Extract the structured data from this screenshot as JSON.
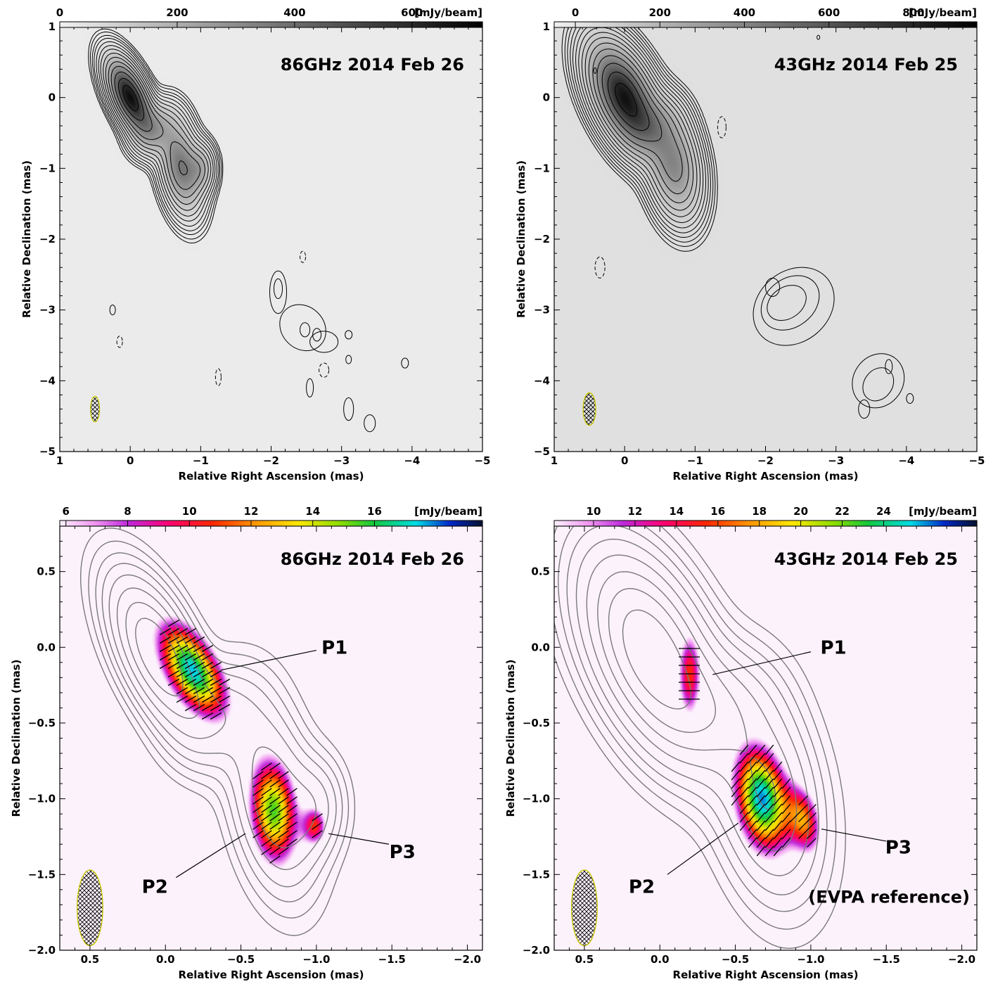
{
  "chart_data": [
    {
      "id": "p86-total",
      "type": "contour",
      "label": "86GHz  2014 Feb 26",
      "xlabel": "Relative Right Ascension (mas)",
      "ylabel": "Relative Declination (mas)",
      "xlim": [
        1,
        -5
      ],
      "ylim": [
        -5,
        1
      ],
      "xticks": [
        1,
        0,
        -1,
        -2,
        -3,
        -4,
        -5
      ],
      "yticks": [
        1,
        0,
        -1,
        -2,
        -3,
        -4,
        -5
      ],
      "colorbar": {
        "unit": "[mJy/beam]",
        "ticks": [
          0,
          200,
          400,
          600
        ],
        "range": [
          0,
          720
        ],
        "map": "gray"
      },
      "image": {
        "peak": 700,
        "background": "#f0f0f0"
      },
      "beam": {
        "x": 0.5,
        "y": -4.4,
        "maj": 0.18,
        "min": 0.065
      },
      "components": [
        {
          "x": 0.0,
          "y": 0.0,
          "flux": 700,
          "rx": 0.14,
          "ry": 0.34,
          "rot": -25
        },
        {
          "x": -0.35,
          "y": -0.45,
          "flux": 180,
          "rx": 0.18,
          "ry": 0.22,
          "rot": 30
        },
        {
          "x": -0.72,
          "y": -0.98,
          "flux": 360,
          "rx": 0.16,
          "ry": 0.38,
          "rot": -10
        },
        {
          "x": -1.0,
          "y": -1.0,
          "flux": 170,
          "rx": 0.12,
          "ry": 0.2,
          "rot": 0
        }
      ],
      "contour_levels": [
        6,
        9,
        14,
        20,
        30,
        45,
        65,
        95,
        135,
        190,
        260,
        360,
        480,
        600
      ],
      "extra_contours": [
        {
          "x": -2.1,
          "y": -2.75,
          "rx": 0.12,
          "ry": 0.3,
          "rot": 0,
          "dashed": false
        },
        {
          "x": -2.45,
          "y": -3.25,
          "rx": 0.3,
          "ry": 0.35,
          "rot": 45,
          "dashed": false
        },
        {
          "x": -2.75,
          "y": -3.45,
          "rx": 0.2,
          "ry": 0.15,
          "rot": 0,
          "dashed": false
        },
        {
          "x": -2.1,
          "y": -2.7,
          "rx": 0.06,
          "ry": 0.14,
          "rot": 0,
          "dashed": false
        },
        {
          "x": -2.48,
          "y": -3.28,
          "rx": 0.07,
          "ry": 0.1,
          "rot": 0,
          "dashed": false
        },
        {
          "x": -2.65,
          "y": -3.35,
          "rx": 0.06,
          "ry": 0.09,
          "rot": 0,
          "dashed": false
        },
        {
          "x": -3.1,
          "y": -3.35,
          "rx": 0.05,
          "ry": 0.06,
          "rot": 0,
          "dashed": false
        },
        {
          "x": -3.1,
          "y": -3.7,
          "rx": 0.04,
          "ry": 0.06,
          "rot": 0,
          "dashed": false
        },
        {
          "x": -3.9,
          "y": -3.75,
          "rx": 0.05,
          "ry": 0.07,
          "rot": 0,
          "dashed": false
        },
        {
          "x": -2.55,
          "y": -4.1,
          "rx": 0.05,
          "ry": 0.13,
          "rot": 0,
          "dashed": false
        },
        {
          "x": -3.1,
          "y": -4.4,
          "rx": 0.07,
          "ry": 0.16,
          "rot": 0,
          "dashed": false
        },
        {
          "x": -3.4,
          "y": -4.6,
          "rx": 0.08,
          "ry": 0.12,
          "rot": 0,
          "dashed": false
        },
        {
          "x": 0.25,
          "y": -3.0,
          "rx": 0.04,
          "ry": 0.07,
          "rot": 0,
          "dashed": false
        },
        {
          "x": -2.75,
          "y": -3.85,
          "rx": 0.07,
          "ry": 0.1,
          "rot": 0,
          "dashed": true
        },
        {
          "x": -2.45,
          "y": -2.25,
          "rx": 0.04,
          "ry": 0.08,
          "rot": 0,
          "dashed": true
        },
        {
          "x": 0.15,
          "y": -3.45,
          "rx": 0.04,
          "ry": 0.08,
          "rot": 0,
          "dashed": true
        },
        {
          "x": -1.25,
          "y": -3.95,
          "rx": 0.04,
          "ry": 0.12,
          "rot": 0,
          "dashed": true
        }
      ],
      "labels": []
    },
    {
      "id": "p43-total",
      "type": "contour",
      "label": "43GHz  2014 Feb 25",
      "xlabel": "Relative Right Ascension (mas)",
      "ylabel": "Relative Declination (mas)",
      "xlim": [
        1,
        -5
      ],
      "ylim": [
        -5,
        1
      ],
      "xticks": [
        1,
        0,
        -1,
        -2,
        -3,
        -4,
        -5
      ],
      "yticks": [
        1,
        0,
        -1,
        -2,
        -3,
        -4,
        -5
      ],
      "colorbar": {
        "unit": "[mJy/beam]",
        "ticks": [
          0,
          200,
          400,
          600,
          800
        ],
        "range": [
          -50,
          950
        ],
        "map": "gray"
      },
      "image": {
        "peak": 950,
        "background": "#f0f0f0"
      },
      "beam": {
        "x": 0.5,
        "y": -4.4,
        "maj": 0.23,
        "min": 0.09
      },
      "components": [
        {
          "x": 0.0,
          "y": 0.0,
          "flux": 900,
          "rx": 0.22,
          "ry": 0.45,
          "rot": -25
        },
        {
          "x": -0.4,
          "y": -0.4,
          "flux": 180,
          "rx": 0.22,
          "ry": 0.24,
          "rot": 30
        },
        {
          "x": -0.7,
          "y": -0.95,
          "flux": 380,
          "rx": 0.2,
          "ry": 0.42,
          "rot": -10
        }
      ],
      "contour_levels": [
        5,
        8,
        12,
        18,
        26,
        38,
        55,
        80,
        115,
        165,
        235,
        330,
        460,
        620,
        800
      ],
      "extra_contours": [
        {
          "x": -2.4,
          "y": -2.95,
          "rx": 0.62,
          "ry": 0.5,
          "rot": 40,
          "dashed": false
        },
        {
          "x": -2.35,
          "y": -2.9,
          "rx": 0.45,
          "ry": 0.34,
          "rot": 38,
          "dashed": false
        },
        {
          "x": -2.3,
          "y": -2.9,
          "rx": 0.3,
          "ry": 0.22,
          "rot": 35,
          "dashed": false
        },
        {
          "x": -2.1,
          "y": -2.68,
          "rx": 0.1,
          "ry": 0.13,
          "rot": 0,
          "dashed": false
        },
        {
          "x": -3.6,
          "y": -4.0,
          "rx": 0.4,
          "ry": 0.35,
          "rot": 55,
          "dashed": false
        },
        {
          "x": -3.6,
          "y": -4.05,
          "rx": 0.25,
          "ry": 0.2,
          "rot": 55,
          "dashed": false
        },
        {
          "x": -3.4,
          "y": -4.4,
          "rx": 0.08,
          "ry": 0.13,
          "rot": 0,
          "dashed": false
        },
        {
          "x": -3.75,
          "y": -3.8,
          "rx": 0.05,
          "ry": 0.1,
          "rot": 0,
          "dashed": false
        },
        {
          "x": -4.05,
          "y": -4.25,
          "rx": 0.05,
          "ry": 0.07,
          "rot": 0,
          "dashed": false
        },
        {
          "x": -1.38,
          "y": -0.42,
          "rx": 0.06,
          "ry": 0.15,
          "rot": 0,
          "dashed": true
        },
        {
          "x": 0.35,
          "y": -2.4,
          "rx": 0.07,
          "ry": 0.15,
          "rot": 0,
          "dashed": true
        },
        {
          "x": 0.42,
          "y": 0.38,
          "rx": 0.02,
          "ry": 0.04,
          "rot": 0,
          "dashed": false
        },
        {
          "x": -2.75,
          "y": 0.85,
          "rx": 0.02,
          "ry": 0.03,
          "rot": 0,
          "dashed": false
        }
      ],
      "labels": []
    },
    {
      "id": "p86-pol",
      "type": "polarization-map",
      "label": "86GHz  2014 Feb 26",
      "xlabel": "Relative Right Ascension (mas)",
      "ylabel": "Relative Declination (mas)",
      "xlim": [
        0.7,
        -2.1
      ],
      "ylim": [
        -2.0,
        0.8
      ],
      "xticks": [
        0.5,
        0.0,
        -0.5,
        -1.0,
        -1.5,
        -2.0
      ],
      "xtick_labels": [
        "0.5",
        "0.0",
        "−0.5",
        "−1.0",
        "−1.5",
        "−2.0"
      ],
      "yticks": [
        0.5,
        0.0,
        -0.5,
        -1.0,
        -1.5,
        -2.0
      ],
      "ytick_labels": [
        "0.5",
        "0.0",
        "−0.5",
        "−1.0",
        "−1.5",
        "−2.0"
      ],
      "colorbar": {
        "unit": "[mJy/beam]",
        "ticks": [
          6,
          8,
          10,
          12,
          14,
          16
        ],
        "range": [
          5.8,
          19.5
        ],
        "map": "rainbow"
      },
      "beam": {
        "x": 0.5,
        "y": -1.72,
        "maj": 0.25,
        "min": 0.085
      },
      "total_components": [
        {
          "x": 0.05,
          "y": -0.05,
          "flux": 700,
          "rx": 0.14,
          "ry": 0.34,
          "rot": -25
        },
        {
          "x": -0.35,
          "y": -0.45,
          "flux": 180,
          "rx": 0.18,
          "ry": 0.22,
          "rot": 30
        },
        {
          "x": -0.72,
          "y": -1.0,
          "flux": 360,
          "rx": 0.16,
          "ry": 0.38,
          "rot": -10
        },
        {
          "x": -1.0,
          "y": -1.05,
          "flux": 170,
          "rx": 0.12,
          "ry": 0.2,
          "rot": 0
        }
      ],
      "contour_levels": [
        20,
        40,
        70,
        110,
        170,
        260,
        380,
        520
      ],
      "pol_components": [
        {
          "name": "P1",
          "x": -0.18,
          "y": -0.15,
          "peak": 17.5,
          "rx": 0.13,
          "ry": 0.27,
          "rot": -30,
          "evpa": 60
        },
        {
          "name": "P2",
          "x": -0.72,
          "y": -1.08,
          "peak": 15.5,
          "rx": 0.12,
          "ry": 0.27,
          "rot": -5,
          "evpa": 55
        },
        {
          "name": "P3",
          "x": -1.0,
          "y": -1.18,
          "peak": 9.6,
          "rx": 0.06,
          "ry": 0.1,
          "rot": 0,
          "evpa": 55
        }
      ],
      "labels": [
        {
          "text": "P1",
          "x": -1.12,
          "y": 0.0,
          "lx1": -1.0,
          "ly1": -0.02,
          "lx2": -0.37,
          "ly2": -0.15
        },
        {
          "text": "P2",
          "x": 0.07,
          "y": -1.58,
          "lx1": -0.07,
          "ly1": -1.52,
          "lx2": -0.53,
          "ly2": -1.23
        },
        {
          "text": "P3",
          "x": -1.57,
          "y": -1.35,
          "lx1": -1.48,
          "ly1": -1.3,
          "lx2": -1.08,
          "ly2": -1.23
        }
      ]
    },
    {
      "id": "p43-pol",
      "type": "polarization-map",
      "label": "43GHz  2014 Feb 25",
      "extra_label": "(EVPA reference)",
      "xlabel": "Relative Right Ascension (mas)",
      "ylabel": "Relative Declination (mas)",
      "xlim": [
        0.7,
        -2.1
      ],
      "ylim": [
        -2.0,
        0.8
      ],
      "xticks": [
        0.5,
        0.0,
        -0.5,
        -1.0,
        -1.5,
        -2.0
      ],
      "xtick_labels": [
        "0.5",
        "0.0",
        "−0.5",
        "−1.0",
        "−1.5",
        "−2.0"
      ],
      "yticks": [
        0.5,
        0.0,
        -0.5,
        -1.0,
        -1.5,
        -2.0
      ],
      "ytick_labels": [
        "0.5",
        "0.0",
        "−0.5",
        "−1.0",
        "−1.5",
        "−2.0"
      ],
      "colorbar": {
        "unit": "[mJy/beam]",
        "ticks": [
          10,
          12,
          14,
          16,
          18,
          20,
          22,
          24
        ],
        "range": [
          8.1,
          28.5
        ],
        "map": "rainbow"
      },
      "beam": {
        "x": 0.5,
        "y": -1.72,
        "maj": 0.25,
        "min": 0.085
      },
      "total_components": [
        {
          "x": 0.05,
          "y": -0.05,
          "flux": 900,
          "rx": 0.22,
          "ry": 0.45,
          "rot": -25
        },
        {
          "x": -0.4,
          "y": -0.4,
          "flux": 180,
          "rx": 0.22,
          "ry": 0.24,
          "rot": 30
        },
        {
          "x": -0.72,
          "y": -0.98,
          "flux": 380,
          "rx": 0.2,
          "ry": 0.42,
          "rot": -10
        }
      ],
      "contour_levels": [
        20,
        40,
        70,
        110,
        170,
        260,
        380,
        520,
        700
      ],
      "pol_components": [
        {
          "name": "P1",
          "x": -0.2,
          "y": -0.18,
          "peak": 15.5,
          "rx": 0.06,
          "ry": 0.22,
          "rot": 0,
          "evpa": 90
        },
        {
          "name": "P2",
          "x": -0.68,
          "y": -1.0,
          "peak": 26.0,
          "rx": 0.13,
          "ry": 0.27,
          "rot": -10,
          "evpa": 40
        },
        {
          "name": "P3",
          "x": -0.97,
          "y": -1.15,
          "peak": 15.0,
          "rx": 0.08,
          "ry": 0.17,
          "rot": -10,
          "evpa": 45
        }
      ],
      "labels": [
        {
          "text": "P1",
          "x": -1.15,
          "y": 0.0,
          "lx1": -1.0,
          "ly1": -0.03,
          "lx2": -0.35,
          "ly2": -0.18
        },
        {
          "text": "P2",
          "x": 0.12,
          "y": -1.58,
          "lx1": -0.05,
          "ly1": -1.5,
          "lx2": -0.52,
          "ly2": -1.16
        },
        {
          "text": "P3",
          "x": -1.58,
          "y": -1.32,
          "lx1": -1.5,
          "ly1": -1.28,
          "lx2": -1.07,
          "ly2": -1.2
        }
      ]
    }
  ]
}
